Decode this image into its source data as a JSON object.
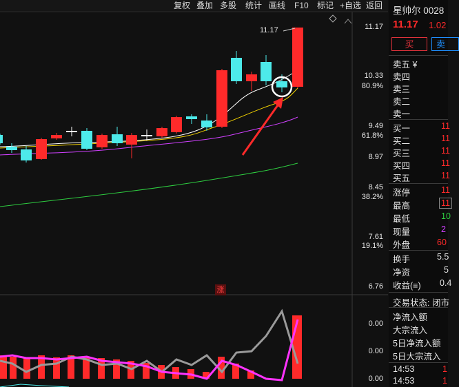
{
  "toolbar": {
    "items": [
      "复权",
      "叠加",
      "多股",
      "统计",
      "画线",
      "F10",
      "标记",
      "+自选",
      "返回"
    ],
    "settings_icon": "diamond-icon"
  },
  "price_axis": {
    "labels": [
      "11.17",
      "10.33",
      "80.9%",
      "9.49",
      "61.8%",
      "8.97",
      "8.45",
      "38.2%",
      "7.61",
      "19.1%",
      "6.76"
    ]
  },
  "chart_annotation": {
    "high_label": "11.17"
  },
  "limit_up_marker": "涨",
  "indicator_axis": {
    "labels": [
      "0.00",
      "0.00",
      "0.00"
    ]
  },
  "quote": {
    "name": "星帅尔 0028",
    "price": "11.17",
    "change": "1.02",
    "buy_label": "买",
    "sell_label": "卖",
    "ask_rows": [
      "卖五 ¥",
      "卖四",
      "卖三",
      "卖二",
      "卖一"
    ],
    "bid_rows": [
      {
        "label": "买一",
        "value": "11"
      },
      {
        "label": "买二",
        "value": "11"
      },
      {
        "label": "买三",
        "value": "11"
      },
      {
        "label": "买四",
        "value": "11"
      },
      {
        "label": "买五",
        "value": "11"
      }
    ],
    "stats": [
      {
        "label": "涨停",
        "value": "11"
      },
      {
        "label": "最高",
        "value": "11"
      },
      {
        "label": "最低",
        "value": "10"
      },
      {
        "label": "现量",
        "value": "2"
      },
      {
        "label": "外盘",
        "value": "60"
      }
    ],
    "stats2": [
      {
        "label": "换手",
        "value": "5.5"
      },
      {
        "label": "净资",
        "value": "5"
      },
      {
        "label": "收益(≡)",
        "value": "0.4"
      }
    ],
    "trade_status_label": "交易状态: 闭市",
    "flow_rows": [
      "净流入额",
      "大宗流入",
      "5日净流入额",
      "5日大宗流入"
    ],
    "ticks": [
      {
        "time": "14:53",
        "value": "1"
      },
      {
        "time": "14:53",
        "value": "1"
      }
    ]
  },
  "colors": {
    "up": "#ff2a2a",
    "down": "#4deaea",
    "ma5": "#ffffff",
    "ma10": "#f0d000",
    "ma20": "#d040ff",
    "ma60": "#2ecc40"
  }
}
